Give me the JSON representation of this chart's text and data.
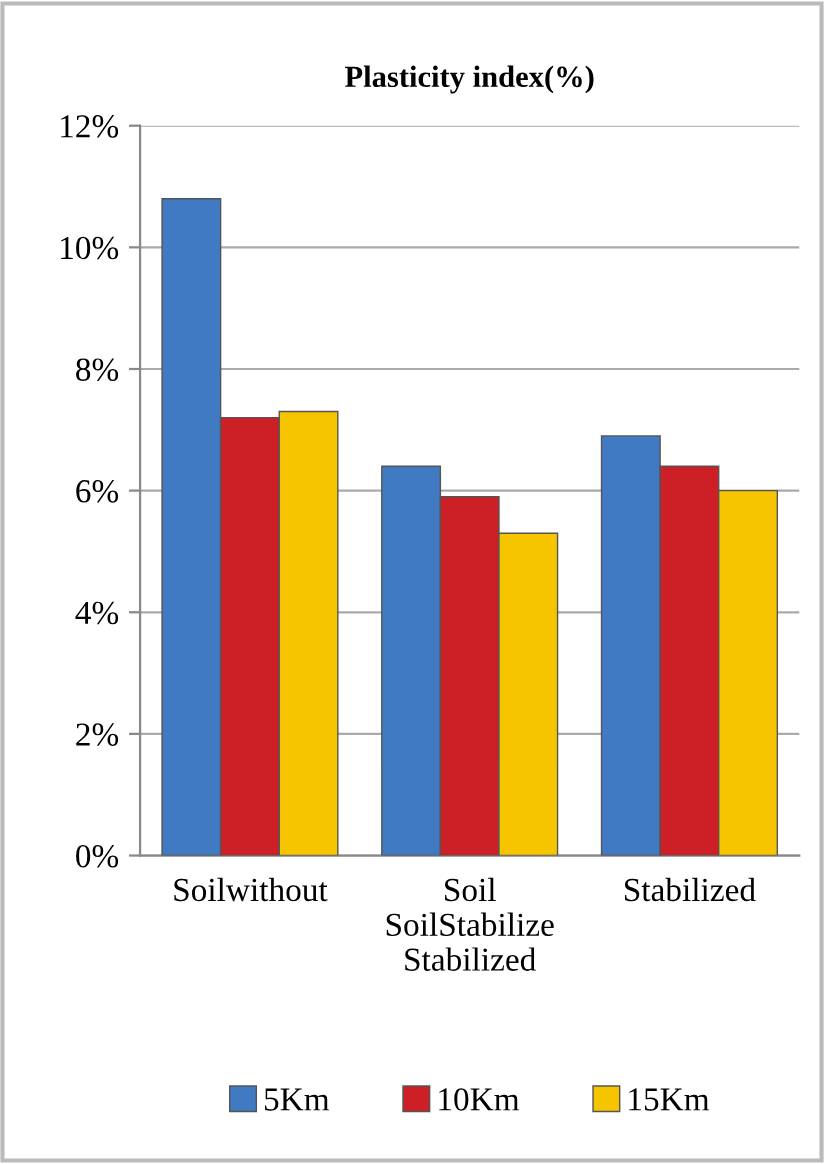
{
  "chart_data": {
    "type": "bar",
    "title": "Plasticity index(%)",
    "categories": [
      "Soilwithout",
      "Soil\nSoilStabilize\nStabilized",
      "Stabilized"
    ],
    "series": [
      {
        "name": "5Km",
        "color": "#3f7ac2",
        "values": [
          10.8,
          6.4,
          6.9
        ]
      },
      {
        "name": "10Km",
        "color": "#cc1f26",
        "values": [
          7.2,
          5.9,
          6.4
        ]
      },
      {
        "name": "15Km",
        "color": "#f7c400",
        "values": [
          7.3,
          5.3,
          6.0
        ]
      }
    ],
    "ylim": [
      0,
      12
    ],
    "yticks": [
      {
        "value": 0,
        "label": "0%"
      },
      {
        "value": 2,
        "label": "2%"
      },
      {
        "value": 4,
        "label": "4%"
      },
      {
        "value": 6,
        "label": "6%"
      },
      {
        "value": 8,
        "label": "8%"
      },
      {
        "value": 10,
        "label": "10%"
      },
      {
        "value": 12,
        "label": "12%"
      }
    ],
    "grid": "y",
    "legend": "bottom"
  }
}
